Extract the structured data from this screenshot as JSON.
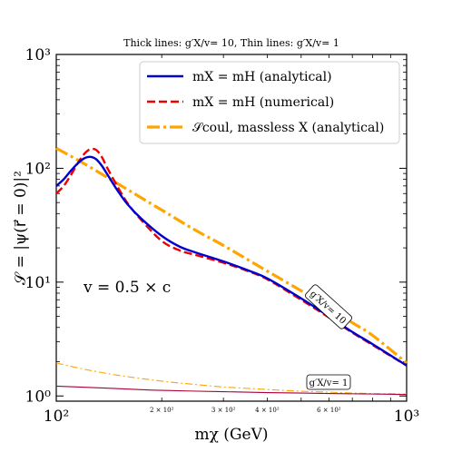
{
  "chart_data": {
    "type": "line",
    "title": "Thick lines: g′X/v= 10, Thin lines: g′X/v= 1",
    "xlabel": "mχ (GeV)",
    "ylabel": "𝒮 = |ψ(r⃗ = 0)|²",
    "xscale": "log",
    "yscale": "log",
    "xlim": [
      100,
      1000
    ],
    "ylim": [
      0.9,
      1000
    ],
    "x_ticks_major": [
      "10²",
      "10³"
    ],
    "x_ticks_minor": [
      "2 × 10²",
      "3 × 10²",
      "4 × 10²",
      "6 × 10²"
    ],
    "y_ticks_major": [
      "10⁰",
      "10¹",
      "10²",
      "10³"
    ],
    "annotation": "v = 0.5 × c",
    "box_labels": [
      "g′X/v= 10",
      "g′X/v= 1"
    ],
    "legend": {
      "placement": "top-right",
      "entries": [
        {
          "label": "mX = mH (analytical)",
          "color": "#0000cc",
          "style": "solid"
        },
        {
          "label": "mX = mH (numerical)",
          "color": "#ee0000",
          "style": "dashed"
        },
        {
          "label": "𝒮coul, massless X (analytical)",
          "color": "#ffa500",
          "style": "dashdot"
        }
      ]
    },
    "series": [
      {
        "name": "mX = mH (analytical)",
        "color": "#0000cc",
        "style": "solid",
        "thickness": "thick",
        "x": [
          100,
          105,
          110,
          115,
          120,
          125,
          130,
          135,
          140,
          150,
          160,
          175,
          200,
          225,
          250,
          300,
          350,
          400,
          500,
          600,
          700,
          800,
          1000
        ],
        "y": [
          70,
          80,
          95,
          110,
          122,
          126,
          120,
          105,
          88,
          63,
          48,
          36,
          25.5,
          20.5,
          18.2,
          15.2,
          12.8,
          10.8,
          7.2,
          5.0,
          3.65,
          2.85,
          1.85
        ]
      },
      {
        "name": "mX = mH (numerical)",
        "color": "#ee0000",
        "style": "dashed",
        "thickness": "thick",
        "x": [
          100,
          105,
          110,
          115,
          120,
          125,
          130,
          135,
          140,
          150,
          160,
          175,
          200,
          225,
          250,
          300,
          350,
          400,
          500,
          600,
          700,
          800,
          1000
        ],
        "y": [
          60,
          70,
          87,
          110,
          133,
          147,
          145,
          125,
          100,
          68,
          49,
          35,
          23,
          19,
          17.3,
          14.8,
          12.6,
          10.6,
          7.0,
          4.9,
          3.6,
          2.8,
          1.85
        ]
      },
      {
        "name": "𝒮coul, massless X (analytical)",
        "color": "#ffa500",
        "style": "dashdot",
        "thickness": "thick",
        "x": [
          100,
          120,
          150,
          200,
          250,
          300,
          400,
          500,
          600,
          700,
          800,
          1000
        ],
        "y": [
          150,
          110,
          73,
          43,
          28.5,
          21,
          12.5,
          8.4,
          6.0,
          4.4,
          3.4,
          1.95
        ]
      },
      {
        "name": "",
        "color": "#ffa500",
        "style": "dashdot",
        "thickness": "thin",
        "x": [
          100,
          120,
          150,
          200,
          250,
          300,
          400,
          500,
          600,
          700,
          800,
          1000
        ],
        "y": [
          1.95,
          1.72,
          1.52,
          1.35,
          1.26,
          1.2,
          1.14,
          1.1,
          1.08,
          1.06,
          1.05,
          1.04
        ]
      },
      {
        "name": "",
        "color": "#aa0033",
        "style": "solid",
        "thickness": "thin",
        "x": [
          100,
          150,
          200,
          300,
          400,
          500,
          600,
          700,
          800,
          1000
        ],
        "y": [
          1.22,
          1.16,
          1.12,
          1.09,
          1.07,
          1.06,
          1.05,
          1.045,
          1.04,
          1.03
        ]
      }
    ]
  }
}
